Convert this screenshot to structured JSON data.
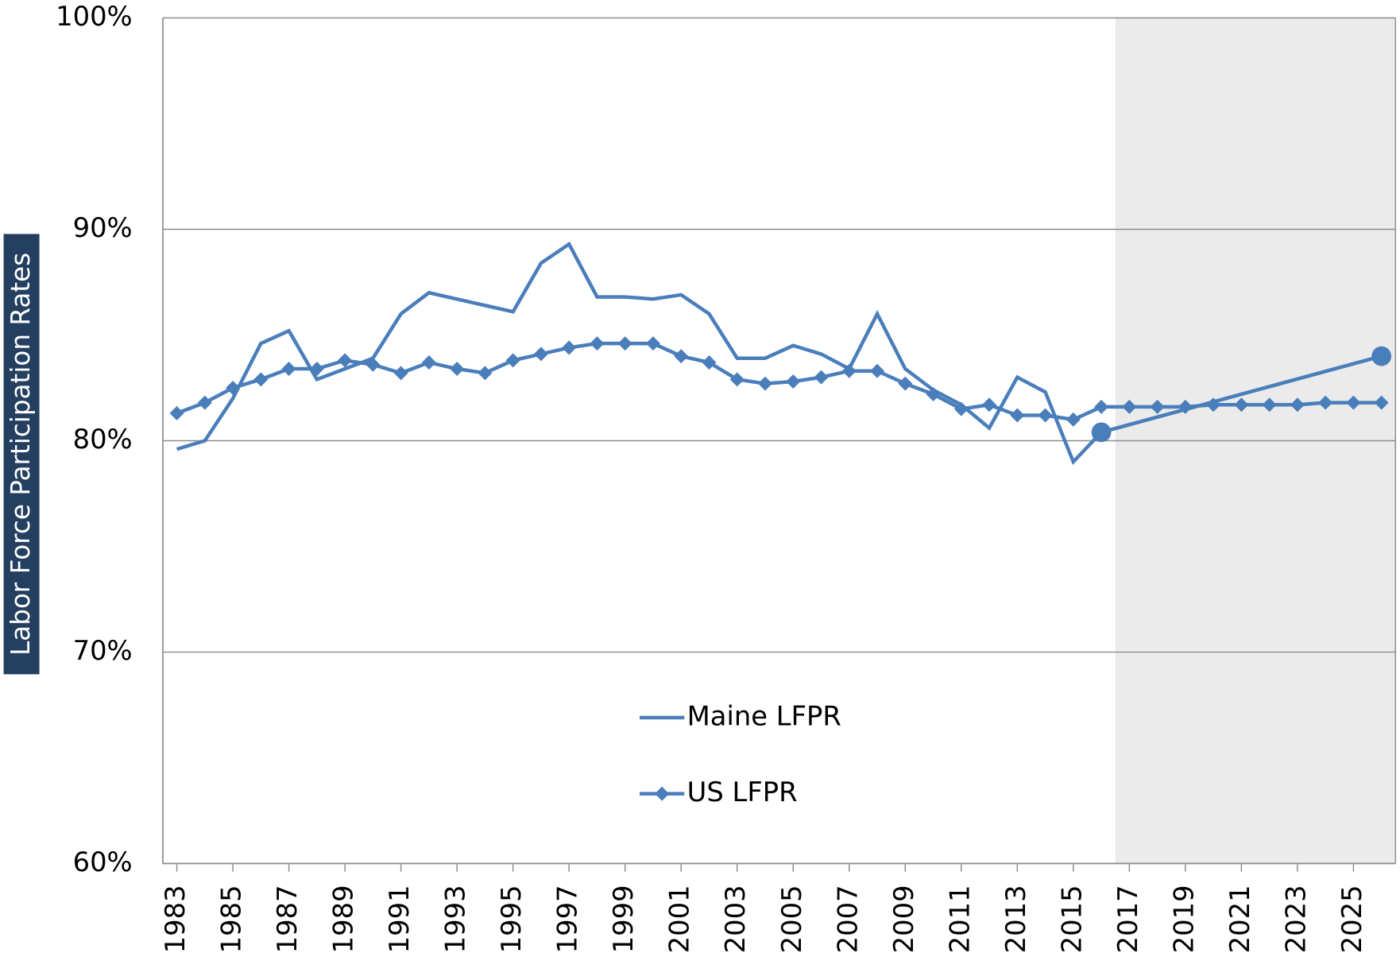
{
  "chart_data": {
    "type": "line",
    "y_label": "Labor Force Participation Rates",
    "xlim": [
      1982.5,
      2026.5
    ],
    "xticks": [
      1983,
      1985,
      1987,
      1989,
      1991,
      1993,
      1995,
      1997,
      1999,
      2001,
      2003,
      2005,
      2007,
      2009,
      2011,
      2013,
      2015,
      2017,
      2019,
      2021,
      2023,
      2025
    ],
    "ylim": [
      60,
      100
    ],
    "yticks": [
      {
        "value": 60,
        "label": "60%"
      },
      {
        "value": 70,
        "label": "70%"
      },
      {
        "value": 80,
        "label": "80%"
      },
      {
        "value": 90,
        "label": "90%"
      },
      {
        "value": 100,
        "label": "100%"
      }
    ],
    "grid": true,
    "shaded_region": [
      2016.5,
      2026.5
    ],
    "series": [
      {
        "name": "Maine LFPR",
        "color": "#4a7ebb",
        "marker": "none",
        "marker_at": [
          2016,
          2026
        ],
        "x": [
          1983,
          1984,
          1985,
          1986,
          1987,
          1988,
          1989,
          1990,
          1991,
          1992,
          1993,
          1994,
          1995,
          1996,
          1997,
          1998,
          1999,
          2000,
          2001,
          2002,
          2003,
          2004,
          2005,
          2006,
          2007,
          2008,
          2009,
          2010,
          2011,
          2012,
          2013,
          2014,
          2015,
          2016,
          2026
        ],
        "values": [
          79.6,
          80.0,
          82.0,
          84.6,
          85.2,
          82.9,
          83.4,
          83.9,
          86.0,
          87.0,
          86.7,
          86.4,
          86.1,
          88.4,
          89.3,
          86.8,
          86.8,
          86.7,
          86.9,
          86.0,
          83.9,
          83.9,
          84.5,
          84.1,
          83.4,
          86.0,
          83.4,
          82.4,
          81.7,
          80.6,
          83.0,
          82.3,
          79.0,
          80.4,
          84.0
        ]
      },
      {
        "name": "US LFPR",
        "color": "#4a7ebb",
        "marker": "diamond",
        "x": [
          1983,
          1984,
          1985,
          1986,
          1987,
          1988,
          1989,
          1990,
          1991,
          1992,
          1993,
          1994,
          1995,
          1996,
          1997,
          1998,
          1999,
          2000,
          2001,
          2002,
          2003,
          2004,
          2005,
          2006,
          2007,
          2008,
          2009,
          2010,
          2011,
          2012,
          2013,
          2014,
          2015,
          2016,
          2017,
          2018,
          2019,
          2020,
          2021,
          2022,
          2023,
          2024,
          2025,
          2026
        ],
        "values": [
          81.3,
          81.8,
          82.5,
          82.9,
          83.4,
          83.4,
          83.8,
          83.6,
          83.2,
          83.7,
          83.4,
          83.2,
          83.8,
          84.1,
          84.4,
          84.6,
          84.6,
          84.6,
          84.0,
          83.7,
          82.9,
          82.7,
          82.8,
          83.0,
          83.3,
          83.3,
          82.7,
          82.2,
          81.5,
          81.7,
          81.2,
          81.2,
          81.0,
          81.6,
          81.6,
          81.6,
          81.6,
          81.7,
          81.7,
          81.7,
          81.7,
          81.8,
          81.8,
          81.8
        ]
      }
    ]
  }
}
